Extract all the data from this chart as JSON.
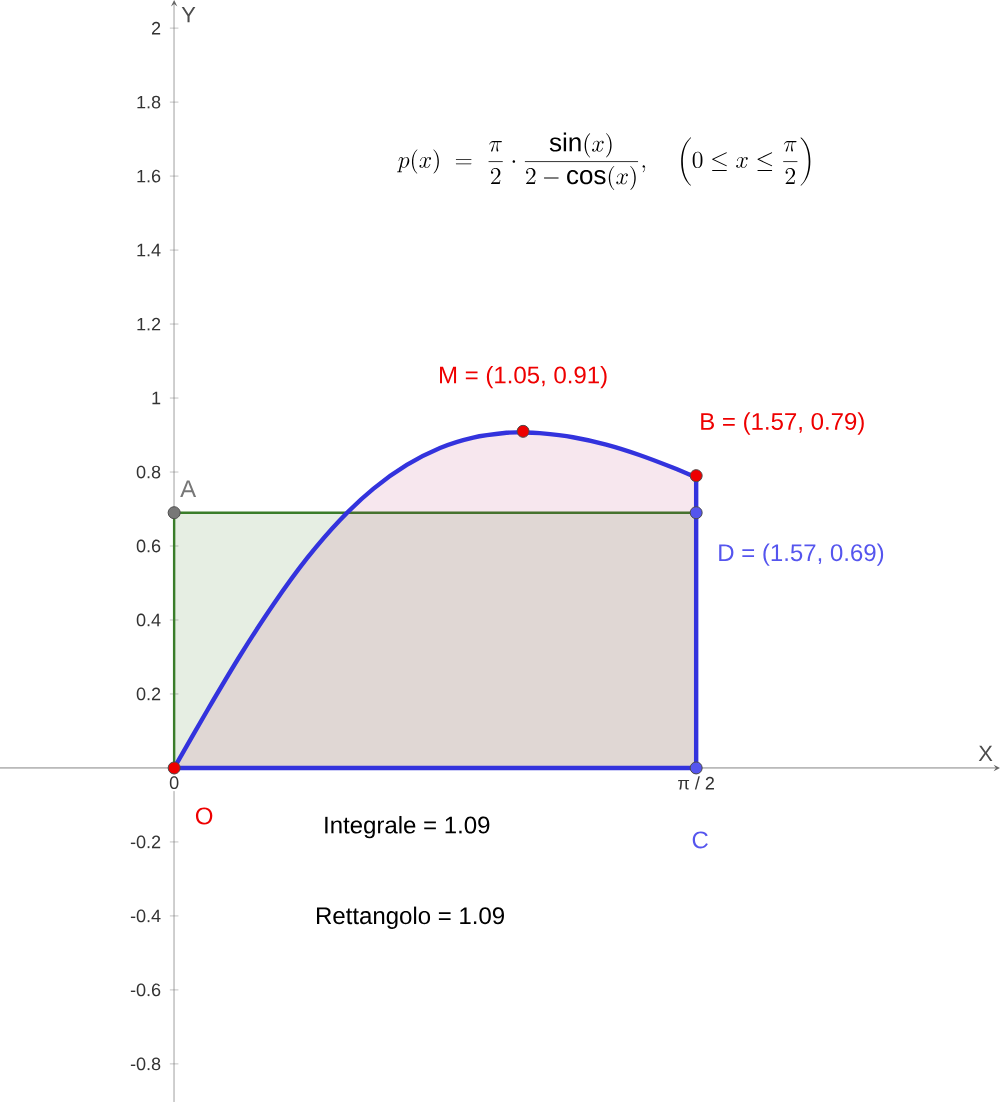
{
  "chart_data": {
    "type": "area",
    "xlabel": "X",
    "ylabel": "Y",
    "xlim": [
      -0.524,
      2.485
    ],
    "ylim": [
      -0.903,
      2.076
    ],
    "xticks": [
      0,
      {
        "value": 1.5708,
        "label": "π / 2"
      }
    ],
    "yticks": [
      -0.8,
      -0.6,
      -0.4,
      -0.2,
      0.2,
      0.4,
      0.6,
      0.8,
      1,
      1.2,
      1.4,
      1.6,
      1.8,
      2
    ],
    "series": [
      {
        "type": "area",
        "color": "#3a7d2a",
        "x": [
          0,
          1.5708
        ],
        "values": [
          0.69,
          0.69
        ]
      },
      {
        "color": "#3333dd",
        "x": [
          0,
          0.1,
          0.2,
          0.3,
          0.4,
          0.5,
          0.6,
          0.7,
          0.8,
          0.9,
          1.0,
          1.05,
          1.1,
          1.2,
          1.3,
          1.4,
          1.5,
          1.5708
        ],
        "values": [
          0,
          0.156,
          0.306,
          0.444,
          0.567,
          0.671,
          0.755,
          0.819,
          0.865,
          0.893,
          0.906,
          0.907,
          0.905,
          0.894,
          0.874,
          0.846,
          0.812,
          0.785
        ]
      },
      {
        "type": "scatter",
        "x": [
          0,
          0,
          1.05,
          1.5708,
          1.5708,
          1.5708
        ],
        "values": [
          0,
          0.69,
          0.91,
          0.79,
          0.69,
          0
        ],
        "colors": [
          "#ee0000",
          "#777777",
          "#ee0000",
          "#ee0000",
          "#5555ee",
          "#5555ee"
        ]
      }
    ],
    "annotations": [
      "p(x) \\;=\\; \\frac{\\pi}{2}\\cdot\\frac{\\sin(x)}{2-\\cos(x)},\\quad \\left(0\\le x\\le\\frac{\\pi}{2}\\right)",
      "Integrale = 1.09",
      "Rettangolo = 1.09",
      {
        "text": "M = (1.05, 0.91)",
        "x": 1.05,
        "y": 0.91
      },
      {
        "text": "B = (1.57, 0.79)",
        "x": 1.5708,
        "y": 0.79
      },
      {
        "text": "D = (1.57, 0.69)",
        "x": 1.5708,
        "y": 0.69
      },
      {
        "text": "O",
        "x": 0,
        "y": 0
      },
      {
        "text": "A",
        "x": 0,
        "y": 0.69
      },
      {
        "text": "C",
        "x": 1.5708,
        "y": 0
      }
    ]
  }
}
